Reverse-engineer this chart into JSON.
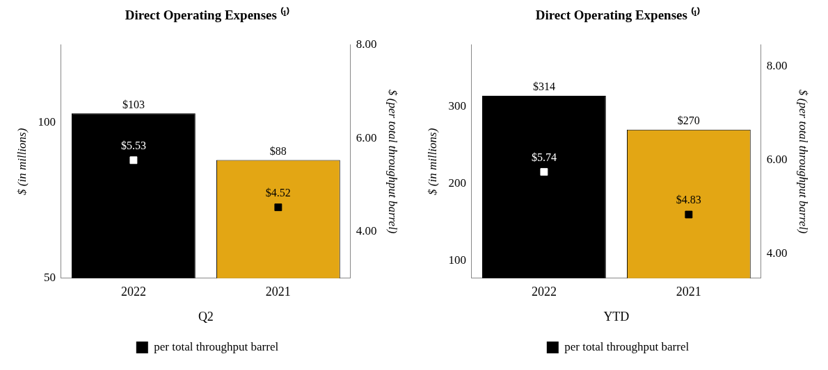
{
  "chart_data": [
    {
      "type": "bar",
      "title": "Direct Operating Expenses ⁽¹⁾",
      "xlabel": "Q2",
      "ylabel": "$ (in millions)",
      "y2label": "$ (per total throughput barrel)",
      "categories": [
        "2022",
        "2021"
      ],
      "series": [
        {
          "colors": [
            "#000000",
            "#e3a614"
          ],
          "values": [
            103,
            88
          ],
          "value_labels": [
            "$103",
            "$88"
          ]
        },
        {
          "type": "scatter",
          "name": "per total throughput barrel",
          "axis": "y2",
          "color": "#000000",
          "colors": [
            "#ffffff",
            "#000000"
          ],
          "values": [
            5.53,
            4.52
          ],
          "value_labels": [
            "$5.53",
            "$4.52"
          ]
        }
      ],
      "marker": "square",
      "ylim": [
        50,
        125
      ],
      "yticks": [
        50,
        100
      ],
      "y2lim": [
        3,
        8
      ],
      "y2ticks": [
        {
          "value": 4,
          "label": "4.00"
        },
        {
          "value": 6,
          "label": "6.00"
        },
        {
          "value": 8,
          "label": "8.00"
        }
      ],
      "grid": false,
      "legend": "bottom"
    },
    {
      "type": "bar",
      "title": "Direct Operating Expenses ⁽¹⁾",
      "xlabel": "YTD",
      "ylabel": "$ (in millions)",
      "y2label": "$ (per total throughput barrel)",
      "categories": [
        "2022",
        "2021"
      ],
      "series": [
        {
          "colors": [
            "#000000",
            "#e3a614"
          ],
          "values": [
            314,
            270
          ],
          "value_labels": [
            "$314",
            "$270"
          ]
        },
        {
          "type": "scatter",
          "name": "per total throughput barrel",
          "axis": "y2",
          "color": "#000000",
          "colors": [
            "#ffffff",
            "#000000"
          ],
          "values": [
            5.74,
            4.83
          ],
          "value_labels": [
            "$5.74",
            "$4.83"
          ]
        }
      ],
      "marker": "square",
      "ylim": [
        77,
        380
      ],
      "yticks": [
        100,
        200,
        300
      ],
      "y2lim": [
        3.47,
        8.45
      ],
      "y2ticks": [
        {
          "value": 4,
          "label": "4.00"
        },
        {
          "value": 6,
          "label": "6.00"
        },
        {
          "value": 8,
          "label": "8.00"
        }
      ],
      "grid": false,
      "legend": "bottom"
    }
  ]
}
